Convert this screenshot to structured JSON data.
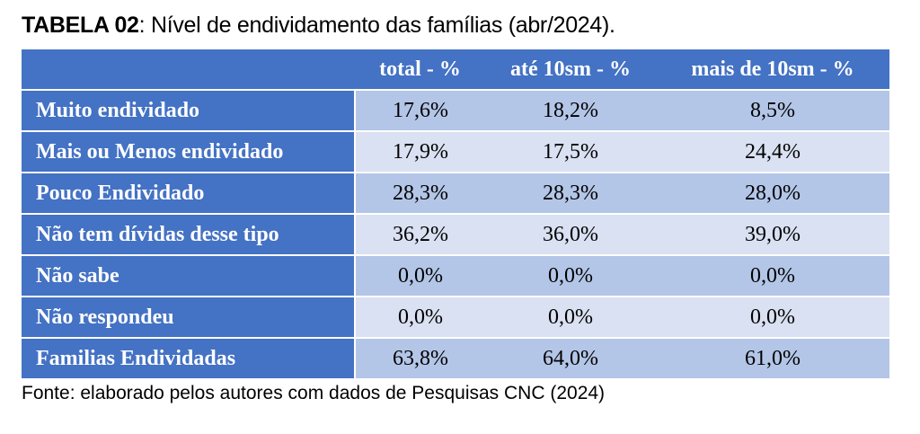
{
  "title": {
    "bold": "TABELA 02",
    "rest": ": Nível de endividamento das famílias (abr/2024)."
  },
  "headers": [
    "",
    "total - %",
    "até 10sm - %",
    "mais de 10sm - %"
  ],
  "rows": [
    {
      "label": "Muito endividado",
      "values": [
        "17,6%",
        "18,2%",
        "8,5%"
      ]
    },
    {
      "label": "Mais ou Menos endividado",
      "values": [
        "17,9%",
        "17,5%",
        "24,4%"
      ]
    },
    {
      "label": "Pouco Endividado",
      "values": [
        "28,3%",
        "28,3%",
        "28,0%"
      ]
    },
    {
      "label": "Não tem dívidas desse tipo",
      "values": [
        "36,2%",
        "36,0%",
        "39,0%"
      ]
    },
    {
      "label": "Não sabe",
      "values": [
        "0,0%",
        "0,0%",
        "0,0%"
      ]
    },
    {
      "label": "Não respondeu",
      "values": [
        "0,0%",
        "0,0%",
        "0,0%"
      ]
    },
    {
      "label": "Familias Endividadas",
      "values": [
        "63,8%",
        "64,0%",
        "61,0%"
      ]
    }
  ],
  "source": "Fonte: elaborado pelos autores com dados de Pesquisas CNC (2024)",
  "colors": {
    "header": "#4472c4",
    "row_dark": "#b4c6e7",
    "row_light": "#d9e1f2"
  }
}
